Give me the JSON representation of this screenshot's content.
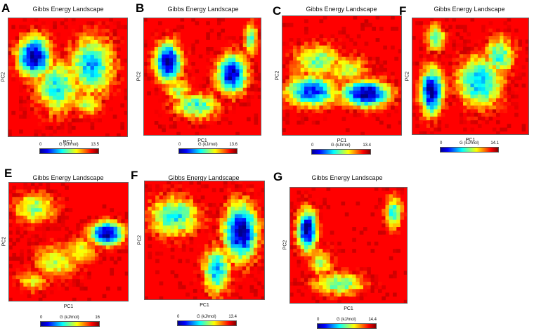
{
  "chart_data": [
    {
      "type": "heatmap",
      "letter": "A",
      "title": "Gibbs Energy Landscape",
      "xlabel": "PC1",
      "ylabel": "PC2",
      "colorbar_label": "G (kJ/mol)",
      "vmin": 0,
      "vmax": 13.5,
      "colorscale": "jet",
      "basins": [
        {
          "x": 0.22,
          "y": 0.33,
          "sx": 0.1,
          "sy": 0.12,
          "depth": 13.5
        },
        {
          "x": 0.42,
          "y": 0.58,
          "sx": 0.13,
          "sy": 0.16,
          "depth": 8.5
        },
        {
          "x": 0.7,
          "y": 0.4,
          "sx": 0.13,
          "sy": 0.17,
          "depth": 9.5
        },
        {
          "x": 0.66,
          "y": 0.72,
          "sx": 0.09,
          "sy": 0.08,
          "depth": 6.0
        }
      ]
    },
    {
      "type": "heatmap",
      "letter": "B",
      "title": "Gibbs Energy Landscape",
      "xlabel": "PC1",
      "ylabel": "PC2",
      "colorbar_label": "G (kJ/mol)",
      "vmin": 0,
      "vmax": 13.6,
      "colorscale": "jet",
      "basins": [
        {
          "x": 0.21,
          "y": 0.38,
          "sx": 0.08,
          "sy": 0.12,
          "depth": 13.6
        },
        {
          "x": 0.75,
          "y": 0.48,
          "sx": 0.09,
          "sy": 0.12,
          "depth": 13.0
        },
        {
          "x": 0.45,
          "y": 0.75,
          "sx": 0.14,
          "sy": 0.08,
          "depth": 8.0
        },
        {
          "x": 0.91,
          "y": 0.18,
          "sx": 0.04,
          "sy": 0.1,
          "depth": 8.0
        },
        {
          "x": 0.3,
          "y": 0.62,
          "sx": 0.08,
          "sy": 0.08,
          "depth": 6.0
        }
      ]
    },
    {
      "type": "heatmap",
      "letter": "C",
      "title": "Gibbs Energy Landscape",
      "xlabel": "PC1",
      "ylabel": "PC2",
      "colorbar_label": "G (kJ/mol)",
      "vmin": 0,
      "vmax": 13.4,
      "colorscale": "jet",
      "basins": [
        {
          "x": 0.25,
          "y": 0.63,
          "sx": 0.15,
          "sy": 0.09,
          "depth": 11.5
        },
        {
          "x": 0.7,
          "y": 0.65,
          "sx": 0.14,
          "sy": 0.08,
          "depth": 13.4
        },
        {
          "x": 0.3,
          "y": 0.38,
          "sx": 0.15,
          "sy": 0.1,
          "depth": 7.0
        },
        {
          "x": 0.55,
          "y": 0.45,
          "sx": 0.12,
          "sy": 0.09,
          "depth": 6.0
        }
      ]
    },
    {
      "type": "heatmap",
      "letter": "F",
      "title": "Gibbs Energy Landscape",
      "xlabel": "PC1",
      "ylabel": "PC2",
      "colorbar_label": "G (kJ/mol)",
      "vmin": 0,
      "vmax": 14.1,
      "colorscale": "jet",
      "basins": [
        {
          "x": 0.17,
          "y": 0.63,
          "sx": 0.07,
          "sy": 0.14,
          "depth": 14.1
        },
        {
          "x": 0.2,
          "y": 0.17,
          "sx": 0.06,
          "sy": 0.08,
          "depth": 8.5
        },
        {
          "x": 0.58,
          "y": 0.55,
          "sx": 0.14,
          "sy": 0.16,
          "depth": 10.0
        },
        {
          "x": 0.75,
          "y": 0.33,
          "sx": 0.09,
          "sy": 0.12,
          "depth": 8.5
        }
      ]
    },
    {
      "type": "heatmap",
      "letter": "E",
      "title": "Gibbs Energy Landscape",
      "xlabel": "PC1",
      "ylabel": "PC2",
      "colorbar_label": "G (kJ/mol)",
      "vmin": 0,
      "vmax": 16,
      "colorscale": "jet",
      "basins": [
        {
          "x": 0.82,
          "y": 0.43,
          "sx": 0.1,
          "sy": 0.07,
          "depth": 16.0
        },
        {
          "x": 0.22,
          "y": 0.22,
          "sx": 0.13,
          "sy": 0.1,
          "depth": 8.0
        },
        {
          "x": 0.4,
          "y": 0.67,
          "sx": 0.14,
          "sy": 0.11,
          "depth": 7.0
        },
        {
          "x": 0.2,
          "y": 0.83,
          "sx": 0.1,
          "sy": 0.07,
          "depth": 6.0
        },
        {
          "x": 0.6,
          "y": 0.58,
          "sx": 0.1,
          "sy": 0.08,
          "depth": 7.0
        }
      ]
    },
    {
      "type": "heatmap",
      "letter": "F",
      "title": "Gibbs Energy Landscape",
      "xlabel": "PC1",
      "ylabel": "PC2",
      "colorbar_label": "G (kJ/mol)",
      "vmin": 0,
      "vmax": 13.4,
      "colorscale": "jet",
      "basins": [
        {
          "x": 0.8,
          "y": 0.43,
          "sx": 0.1,
          "sy": 0.17,
          "depth": 13.4
        },
        {
          "x": 0.25,
          "y": 0.3,
          "sx": 0.15,
          "sy": 0.12,
          "depth": 8.5
        },
        {
          "x": 0.6,
          "y": 0.75,
          "sx": 0.08,
          "sy": 0.14,
          "depth": 9.5
        }
      ]
    },
    {
      "type": "heatmap",
      "letter": "G",
      "title": "Gibbs Energy Landscape",
      "xlabel": "PC1",
      "ylabel": "PC2",
      "colorbar_label": "G (kJ/mol)",
      "vmin": 0,
      "vmax": 14.4,
      "colorscale": "jet",
      "basins": [
        {
          "x": 0.15,
          "y": 0.37,
          "sx": 0.06,
          "sy": 0.13,
          "depth": 14.4
        },
        {
          "x": 0.88,
          "y": 0.22,
          "sx": 0.05,
          "sy": 0.1,
          "depth": 9.0
        },
        {
          "x": 0.42,
          "y": 0.83,
          "sx": 0.16,
          "sy": 0.07,
          "depth": 8.0
        },
        {
          "x": 0.27,
          "y": 0.65,
          "sx": 0.07,
          "sy": 0.09,
          "depth": 6.5
        }
      ]
    }
  ]
}
